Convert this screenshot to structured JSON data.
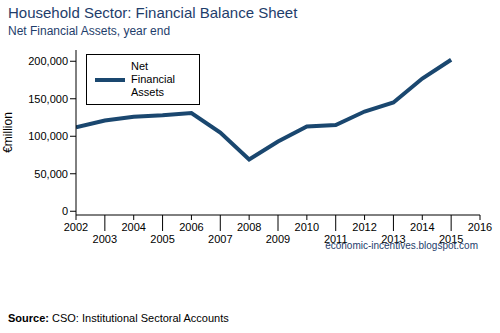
{
  "chart_data": {
    "type": "line",
    "title": "Household Sector: Financial Balance Sheet",
    "subtitle": "Net Financial Assets, year end",
    "y_label": "€million",
    "x": [
      2002,
      2003,
      2004,
      2005,
      2006,
      2007,
      2008,
      2009,
      2010,
      2011,
      2012,
      2013,
      2014,
      2015
    ],
    "series": [
      {
        "name": "Net Financial Assets",
        "color": "#1a476f",
        "values": [
          112000,
          121000,
          126000,
          128000,
          131000,
          105000,
          69000,
          93000,
          113000,
          115000,
          133000,
          145000,
          177000,
          202000
        ]
      }
    ],
    "xlim": [
      2002,
      2016
    ],
    "xticks": [
      2002,
      2003,
      2004,
      2005,
      2006,
      2007,
      2008,
      2009,
      2010,
      2011,
      2012,
      2013,
      2014,
      2015,
      2016
    ],
    "ylim": [
      -5000,
      215000
    ],
    "yticks": [
      0,
      {
        "value": 50000,
        "label": "50,000"
      },
      {
        "value": 100000,
        "label": "100,000"
      },
      {
        "value": 150000,
        "label": "150,000"
      },
      {
        "value": 200000,
        "label": "200,000"
      }
    ],
    "grid": false,
    "legend": "top-left",
    "annotation": "economic-incentives.blogspot.com",
    "source": {
      "label": "Source:",
      "text": "CSO: Institutional Sectoral Accounts"
    }
  }
}
